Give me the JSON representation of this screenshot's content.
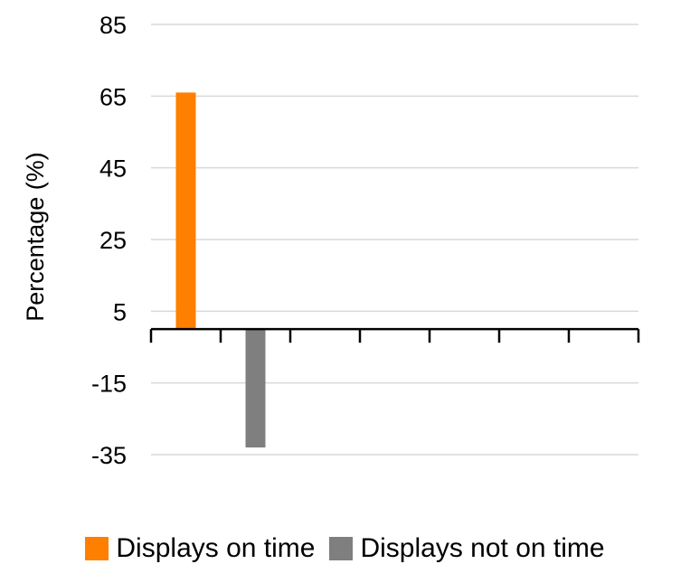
{
  "chart_data": {
    "type": "bar",
    "categories": [
      "",
      "",
      "",
      "",
      "",
      "",
      ""
    ],
    "series": [
      {
        "name": "Displays on time",
        "color": "#FF7F00",
        "values": [
          66,
          null,
          null,
          null,
          null,
          null,
          null
        ]
      },
      {
        "name": "Displays not on time",
        "color": "#7F7F7F",
        "values": [
          null,
          -33,
          null,
          null,
          null,
          null,
          null
        ]
      }
    ],
    "title": "",
    "xlabel": "",
    "ylabel": "Percentage (%)",
    "ylim": [
      -35,
      85
    ],
    "yticks": [
      85,
      65,
      45,
      25,
      5,
      -15,
      -35
    ],
    "ytick_labels": [
      "85",
      "65",
      "45",
      "25",
      "5",
      "-15",
      "-35"
    ],
    "grid": true,
    "legend_position": "bottom",
    "gridline_color": "#D9D9D9"
  }
}
